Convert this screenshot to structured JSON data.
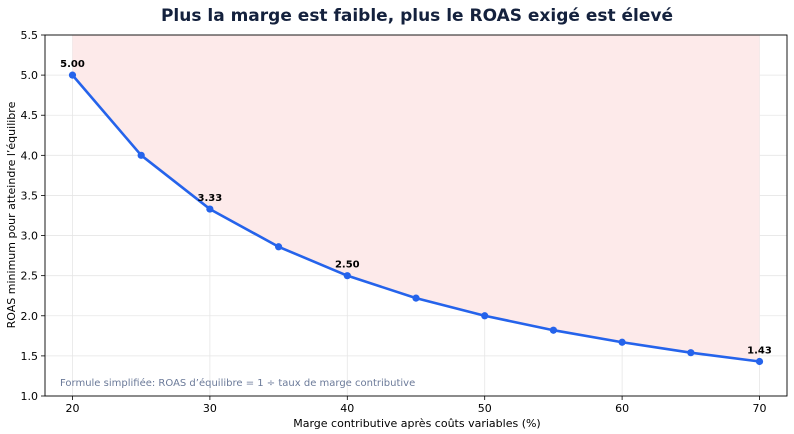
{
  "chart_data": {
    "type": "line",
    "title": "Plus la marge est faible, plus le ROAS exigé est élevé",
    "xlabel": "Marge contributive après coûts variables (%)",
    "ylabel": "ROAS minimum pour atteindre l’équilibre",
    "x": [
      20,
      25,
      30,
      35,
      40,
      45,
      50,
      55,
      60,
      65,
      70
    ],
    "series": [
      {
        "values": [
          5.0,
          4.0,
          3.33,
          2.86,
          2.5,
          2.22,
          2.0,
          1.82,
          1.67,
          1.54,
          1.43
        ]
      }
    ],
    "xlim": [
      18,
      72
    ],
    "ylim": [
      1.0,
      5.5
    ],
    "xticks": [
      "20",
      "30",
      "40",
      "50",
      "60",
      "70"
    ],
    "yticks": [
      "1.0",
      "1.5",
      "2.0",
      "2.5",
      "3.0",
      "3.5",
      "4.0",
      "4.5",
      "5.0",
      "5.5"
    ],
    "data_labels": [
      {
        "x": 20,
        "y": 5.0,
        "text": "5.00"
      },
      {
        "x": 30,
        "y": 3.33,
        "text": "3.33"
      },
      {
        "x": 40,
        "y": 2.5,
        "text": "2.50"
      },
      {
        "x": 70,
        "y": 1.43,
        "text": "1.43"
      }
    ],
    "annotation": "Formule simplifiée: ROAS d’équilibre = 1 ÷ taux de marge contributive",
    "grid": true,
    "line_color": "#2563eb",
    "fill_color": "#fdeaea"
  }
}
